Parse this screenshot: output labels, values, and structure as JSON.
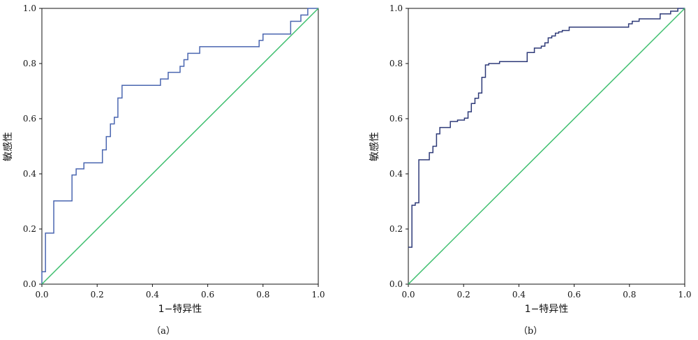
{
  "chart_data": [
    {
      "type": "line",
      "panel_label": "（a）",
      "xlabel": "1−特异性",
      "ylabel": "敏感性",
      "xlim": [
        0,
        1
      ],
      "ylim": [
        0,
        1
      ],
      "xticks": [
        "0.0",
        "0.2",
        "0.4",
        "0.6",
        "0.8",
        "1.0"
      ],
      "yticks": [
        "0.0",
        "0.2",
        "0.4",
        "0.6",
        "0.8",
        "1.0"
      ],
      "grid": false,
      "series": [
        {
          "color": "#4a66b0",
          "style": "step",
          "x": [
            0.0,
            0.0,
            0.013,
            0.013,
            0.043,
            0.043,
            0.109,
            0.109,
            0.124,
            0.124,
            0.152,
            0.152,
            0.219,
            0.219,
            0.233,
            0.233,
            0.248,
            0.248,
            0.262,
            0.262,
            0.275,
            0.275,
            0.29,
            0.29,
            0.429,
            0.429,
            0.457,
            0.457,
            0.5,
            0.5,
            0.514,
            0.514,
            0.528,
            0.528,
            0.571,
            0.571,
            0.786,
            0.786,
            0.8,
            0.8,
            0.9,
            0.9,
            0.937,
            0.937,
            0.962,
            0.962,
            0.98,
            0.98,
            1.0
          ],
          "y": [
            0.0,
            0.045,
            0.045,
            0.185,
            0.185,
            0.302,
            0.302,
            0.396,
            0.396,
            0.418,
            0.418,
            0.44,
            0.44,
            0.487,
            0.487,
            0.535,
            0.535,
            0.581,
            0.581,
            0.605,
            0.605,
            0.675,
            0.675,
            0.721,
            0.721,
            0.744,
            0.744,
            0.768,
            0.768,
            0.79,
            0.79,
            0.814,
            0.814,
            0.837,
            0.837,
            0.861,
            0.861,
            0.884,
            0.884,
            0.907,
            0.907,
            0.953,
            0.953,
            0.976,
            0.976,
            1.0,
            1.0,
            1.0,
            1.0
          ]
        },
        {
          "color": "#3fbf6f",
          "style": "line",
          "x": [
            0,
            1
          ],
          "y": [
            0,
            1
          ]
        }
      ]
    },
    {
      "type": "line",
      "panel_label": "（b）",
      "xlabel": "1−特异性",
      "ylabel": "敏感性",
      "xlim": [
        0,
        1
      ],
      "ylim": [
        0,
        1
      ],
      "xticks": [
        "0.0",
        "0.2",
        "0.4",
        "0.6",
        "0.8",
        "1.0"
      ],
      "yticks": [
        "0.0",
        "0.2",
        "0.4",
        "0.6",
        "0.8",
        "1.0"
      ],
      "grid": false,
      "series": [
        {
          "color": "#2e3a78",
          "style": "step",
          "x": [
            0.0,
            0.0,
            0.013,
            0.013,
            0.025,
            0.025,
            0.038,
            0.038,
            0.076,
            0.076,
            0.089,
            0.089,
            0.102,
            0.102,
            0.114,
            0.114,
            0.127,
            0.127,
            0.152,
            0.152,
            0.178,
            0.178,
            0.203,
            0.203,
            0.216,
            0.216,
            0.228,
            0.228,
            0.241,
            0.241,
            0.254,
            0.254,
            0.266,
            0.266,
            0.279,
            0.279,
            0.291,
            0.291,
            0.33,
            0.33,
            0.342,
            0.342,
            0.43,
            0.43,
            0.456,
            0.456,
            0.481,
            0.481,
            0.494,
            0.494,
            0.506,
            0.506,
            0.519,
            0.519,
            0.532,
            0.532,
            0.544,
            0.544,
            0.557,
            0.557,
            0.582,
            0.582,
            0.608,
            0.608,
            0.797,
            0.797,
            0.81,
            0.81,
            0.835,
            0.835,
            0.911,
            0.911,
            0.949,
            0.949,
            0.975,
            0.975,
            1.0
          ],
          "y": [
            0.134,
            0.134,
            0.134,
            0.286,
            0.286,
            0.295,
            0.295,
            0.451,
            0.451,
            0.477,
            0.477,
            0.5,
            0.5,
            0.545,
            0.545,
            0.568,
            0.568,
            0.568,
            0.568,
            0.59,
            0.59,
            0.595,
            0.595,
            0.602,
            0.602,
            0.625,
            0.625,
            0.655,
            0.655,
            0.674,
            0.674,
            0.693,
            0.693,
            0.75,
            0.75,
            0.795,
            0.795,
            0.8,
            0.8,
            0.807,
            0.807,
            0.807,
            0.807,
            0.84,
            0.84,
            0.856,
            0.856,
            0.863,
            0.863,
            0.875,
            0.875,
            0.893,
            0.893,
            0.9,
            0.9,
            0.91,
            0.91,
            0.915,
            0.915,
            0.92,
            0.92,
            0.932,
            0.932,
            0.932,
            0.932,
            0.944,
            0.944,
            0.953,
            0.953,
            0.962,
            0.962,
            0.98,
            0.98,
            0.99,
            0.99,
            1.0,
            1.0
          ]
        },
        {
          "color": "#3fbf6f",
          "style": "line",
          "x": [
            0,
            1
          ],
          "y": [
            0,
            1
          ]
        }
      ]
    }
  ]
}
